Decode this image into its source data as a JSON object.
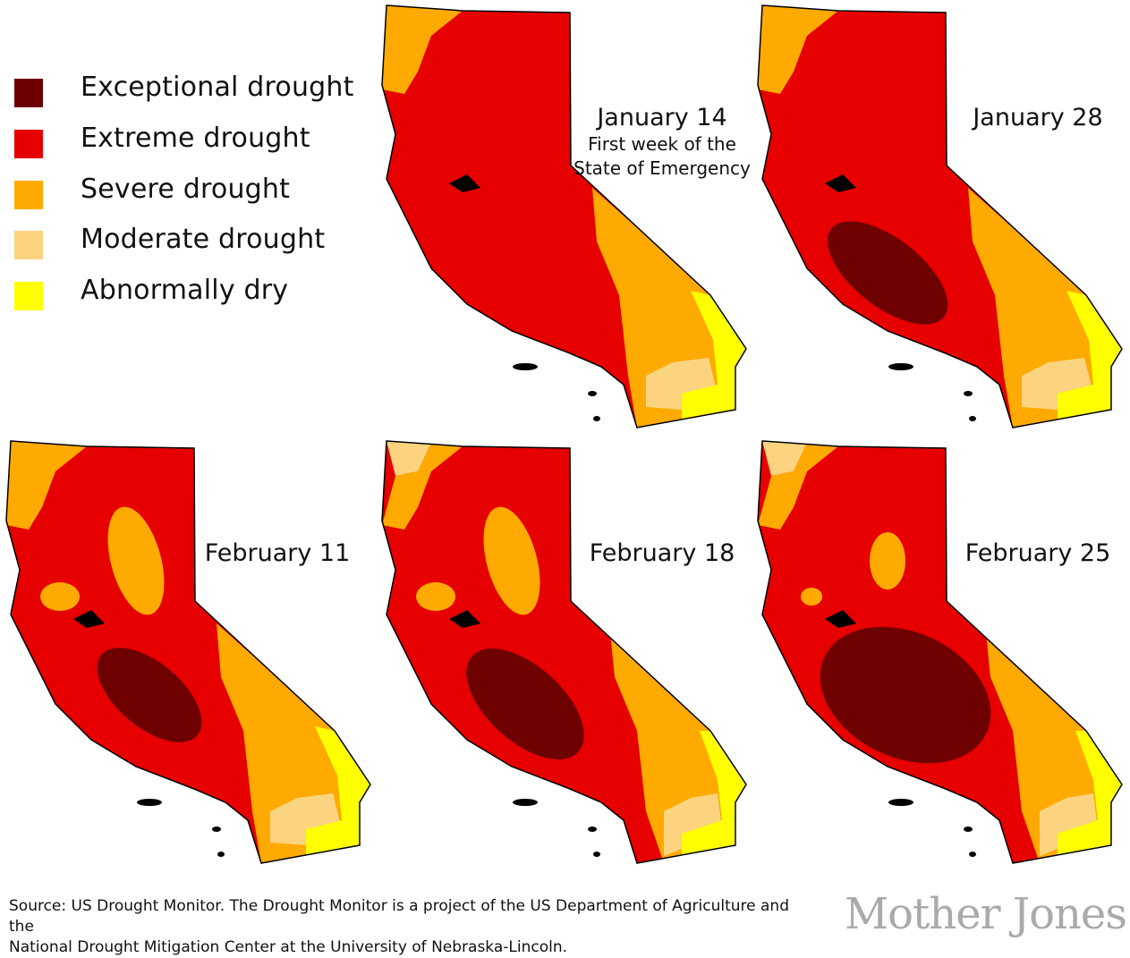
{
  "legend": [
    {
      "label": "Exceptional drought",
      "color": "#6e0000"
    },
    {
      "label": "Extreme drought",
      "color": "#e60000"
    },
    {
      "label": "Severe drought",
      "color": "#ffaa00"
    },
    {
      "label": "Moderate drought",
      "color": "#fcd37f"
    },
    {
      "label": "Abnormally dry",
      "color": "#ffff00"
    }
  ],
  "maps": [
    {
      "title": "January 14",
      "subtitle_1": "First week of the",
      "subtitle_2": "State of Emergency"
    },
    {
      "title": "January 28"
    },
    {
      "title": "February 11"
    },
    {
      "title": "February 18"
    },
    {
      "title": "February 25"
    }
  ],
  "footer": {
    "line1": "Source: US Drought Monitor. The Drought Monitor is a project of the US Department of Agriculture and the",
    "line2": "National Drought Mitigation Center at the University of Nebraska-Lincoln."
  },
  "brand": "Mother Jones"
}
